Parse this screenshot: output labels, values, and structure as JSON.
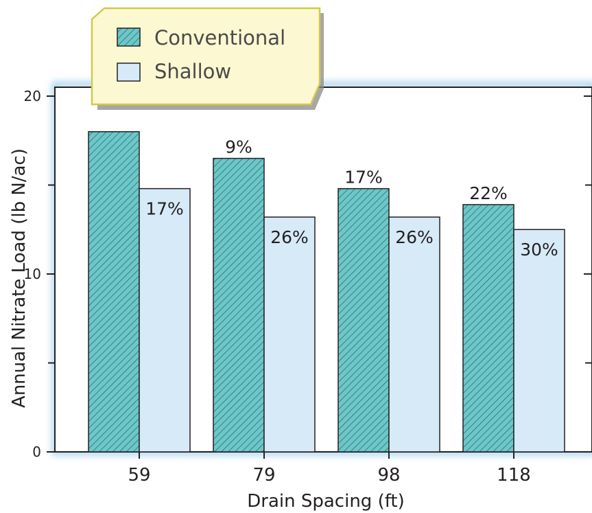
{
  "chart_data": {
    "type": "bar",
    "title": "",
    "xlabel": "Drain Spacing (ft)",
    "ylabel": "Annual Nitrate Load (lb N/ac)",
    "categories": [
      "59",
      "79",
      "98",
      "118"
    ],
    "ylim": [
      0,
      20.5
    ],
    "yticks": [
      0,
      10,
      20
    ],
    "grid": false,
    "legend_position": "top-left",
    "series": [
      {
        "name": "Conventional",
        "values": [
          18.0,
          16.5,
          14.8,
          13.9
        ],
        "labels": [
          "",
          "9%",
          "17%",
          "22%"
        ],
        "color": "#6cc7c9",
        "pattern": "hatched"
      },
      {
        "name": "Shallow",
        "values": [
          14.8,
          13.2,
          13.2,
          12.5
        ],
        "labels": [
          "17%",
          "26%",
          "26%",
          "30%"
        ],
        "color": "#d6eaf8",
        "pattern": "solid"
      }
    ]
  },
  "colors": {
    "axis": "#231f20",
    "plot_glow": "#5aa9dc",
    "legend_fill": "#fbf8d2",
    "legend_border": "#d4c84a",
    "legend_shadow": "#8a8a8a",
    "hatch_line": "#2a5f62"
  }
}
